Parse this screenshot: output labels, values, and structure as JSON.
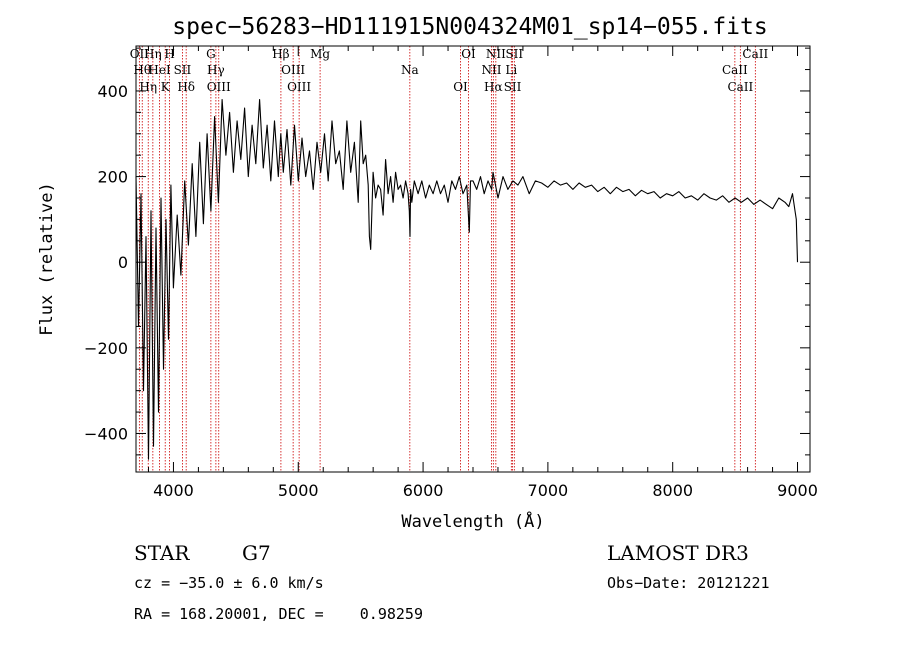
{
  "chart_data": {
    "type": "line",
    "title": "spec−56283−HD111915N004324M01_sp14−055.fits",
    "xlabel": "Wavelength (Å)",
    "ylabel": "Flux (relative)",
    "xlim": [
      3700,
      9100
    ],
    "ylim": [
      -490,
      505
    ],
    "x_ticks": [
      4000,
      5000,
      6000,
      7000,
      8000,
      9000
    ],
    "y_ticks": [
      {
        "value": 400,
        "label": "400"
      },
      {
        "value": 200,
        "label": "200"
      },
      {
        "value": 0,
        "label": "0"
      },
      {
        "value": -200,
        "label": "−200"
      },
      {
        "value": -400,
        "label": "−400"
      }
    ],
    "series": [
      {
        "name": "flux",
        "x": [
          3700,
          3720,
          3740,
          3760,
          3780,
          3800,
          3820,
          3840,
          3860,
          3880,
          3900,
          3920,
          3940,
          3960,
          3980,
          4000,
          4030,
          4060,
          4090,
          4120,
          4150,
          4180,
          4210,
          4240,
          4270,
          4300,
          4330,
          4360,
          4390,
          4420,
          4450,
          4480,
          4510,
          4540,
          4570,
          4600,
          4630,
          4660,
          4690,
          4720,
          4750,
          4780,
          4810,
          4840,
          4860,
          4880,
          4910,
          4940,
          4970,
          5000,
          5030,
          5060,
          5090,
          5120,
          5150,
          5180,
          5210,
          5240,
          5270,
          5300,
          5330,
          5360,
          5390,
          5420,
          5450,
          5480,
          5500,
          5520,
          5540,
          5560,
          5570,
          5580,
          5600,
          5620,
          5640,
          5660,
          5680,
          5700,
          5720,
          5740,
          5760,
          5780,
          5800,
          5820,
          5840,
          5860,
          5880,
          5890,
          5895,
          5900,
          5910,
          5930,
          5960,
          5990,
          6020,
          6050,
          6080,
          6110,
          6140,
          6170,
          6200,
          6230,
          6260,
          6290,
          6320,
          6350,
          6370,
          6380,
          6400,
          6430,
          6460,
          6490,
          6520,
          6550,
          6560,
          6580,
          6600,
          6640,
          6680,
          6720,
          6760,
          6800,
          6850,
          6900,
          6950,
          7000,
          7050,
          7100,
          7150,
          7200,
          7250,
          7300,
          7350,
          7400,
          7450,
          7500,
          7550,
          7600,
          7650,
          7700,
          7750,
          7800,
          7850,
          7900,
          7950,
          8000,
          8050,
          8100,
          8150,
          8200,
          8250,
          8300,
          8350,
          8400,
          8450,
          8500,
          8550,
          8600,
          8650,
          8700,
          8750,
          8800,
          8850,
          8900,
          8930,
          8960,
          8980,
          8990,
          9000
        ],
        "values": [
          200,
          -150,
          160,
          -300,
          60,
          -460,
          120,
          -430,
          80,
          -350,
          150,
          -250,
          100,
          -180,
          180,
          -60,
          110,
          -30,
          190,
          40,
          230,
          60,
          280,
          90,
          300,
          120,
          340,
          140,
          380,
          250,
          350,
          210,
          330,
          240,
          360,
          200,
          320,
          230,
          380,
          220,
          320,
          190,
          330,
          200,
          300,
          210,
          310,
          180,
          320,
          190,
          290,
          200,
          260,
          170,
          280,
          210,
          300,
          190,
          330,
          230,
          260,
          170,
          330,
          210,
          280,
          140,
          330,
          230,
          250,
          180,
          60,
          30,
          210,
          150,
          180,
          170,
          110,
          240,
          160,
          200,
          140,
          210,
          170,
          180,
          150,
          190,
          160,
          120,
          60,
          170,
          140,
          190,
          160,
          190,
          150,
          180,
          160,
          190,
          160,
          180,
          140,
          190,
          170,
          200,
          160,
          180,
          70,
          190,
          190,
          170,
          200,
          160,
          190,
          170,
          210,
          180,
          150,
          200,
          170,
          190,
          180,
          200,
          160,
          190,
          185,
          175,
          190,
          180,
          185,
          170,
          185,
          175,
          180,
          165,
          175,
          160,
          175,
          165,
          170,
          155,
          168,
          160,
          165,
          150,
          160,
          155,
          165,
          150,
          155,
          145,
          160,
          150,
          145,
          155,
          140,
          150,
          140,
          150,
          135,
          145,
          135,
          125,
          150,
          140,
          130,
          160,
          120,
          100,
          0
        ]
      }
    ],
    "lines": [
      {
        "wl": 3727,
        "label": "OII"
      },
      {
        "wl": 3750,
        "label": "Hθ"
      },
      {
        "wl": 3798,
        "label": "Hη"
      },
      {
        "wl": 3835,
        "label": "Hη"
      },
      {
        "wl": 3889,
        "label": "HeI"
      },
      {
        "wl": 3934,
        "label": "K"
      },
      {
        "wl": 3969,
        "label": "H"
      },
      {
        "wl": 4072,
        "label": "SII"
      },
      {
        "wl": 4102,
        "label": "Hδ"
      },
      {
        "wl": 4300,
        "label": "G"
      },
      {
        "wl": 4340,
        "label": "Hγ"
      },
      {
        "wl": 4363,
        "label": "OIII"
      },
      {
        "wl": 4861,
        "label": "Hβ"
      },
      {
        "wl": 4959,
        "label": "OIII"
      },
      {
        "wl": 5007,
        "label": "OIII"
      },
      {
        "wl": 5175,
        "label": "Mg"
      },
      {
        "wl": 5894,
        "label": "Na"
      },
      {
        "wl": 6300,
        "label": "OI"
      },
      {
        "wl": 6364,
        "label": "OI"
      },
      {
        "wl": 6548,
        "label": "NII"
      },
      {
        "wl": 6563,
        "label": "Hα"
      },
      {
        "wl": 6583,
        "label": "NII"
      },
      {
        "wl": 6707,
        "label": "Li"
      },
      {
        "wl": 6717,
        "label": "SII"
      },
      {
        "wl": 6731,
        "label": "SII"
      },
      {
        "wl": 8498,
        "label": "CaII"
      },
      {
        "wl": 8542,
        "label": "CaII"
      },
      {
        "wl": 8662,
        "label": "CaII"
      }
    ]
  },
  "info": {
    "class": "STAR",
    "subclass": "G7",
    "survey": "LAMOST DR3",
    "cz": "cz = −35.0 ± 6.0 km/s",
    "obs_date": "Obs−Date: 20121221",
    "radec": "RA = 168.20001, DEC =    0.98259"
  },
  "colors": {
    "axis": "#000000",
    "line": "#000000",
    "marker": "#cc0000"
  }
}
